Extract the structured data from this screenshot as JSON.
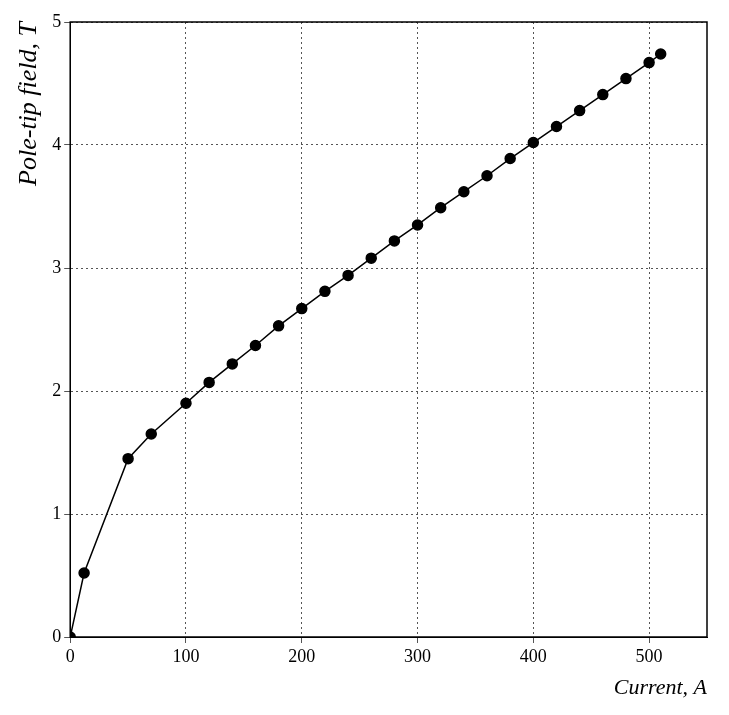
{
  "chart_data": {
    "type": "line",
    "x_label": "Current, A",
    "y_label": "Pole-tip field, T",
    "x": [
      0,
      12,
      50,
      70,
      100,
      120,
      140,
      160,
      180,
      200,
      220,
      240,
      260,
      280,
      300,
      320,
      340,
      360,
      380,
      400,
      420,
      440,
      460,
      480,
      500,
      510
    ],
    "values": [
      0,
      0.52,
      1.45,
      1.65,
      1.9,
      2.07,
      2.22,
      2.37,
      2.53,
      2.67,
      2.81,
      2.94,
      3.08,
      3.22,
      3.35,
      3.49,
      3.62,
      3.75,
      3.89,
      4.02,
      4.15,
      4.28,
      4.41,
      4.54,
      4.67,
      4.74
    ],
    "color": "#000000",
    "marker": "circle",
    "line_style": "solid",
    "xlim": [
      0,
      550
    ],
    "xticks": [
      0,
      100,
      200,
      300,
      400,
      500
    ],
    "ylim": [
      0,
      5
    ],
    "yticks": [
      0,
      1,
      2,
      3,
      4,
      5
    ],
    "grid": true
  }
}
